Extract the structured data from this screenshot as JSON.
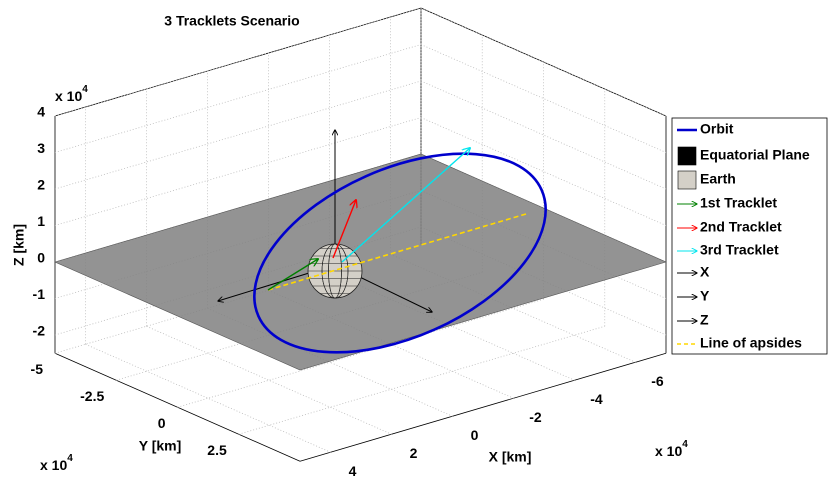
{
  "chart_data": {
    "type": "orbit3d",
    "title": "3 Tracklets Scenario",
    "xlabel": "X [km]",
    "ylabel": "Y [km]",
    "zlabel": "Z [km]",
    "xlim": [
      -7,
      5
    ],
    "ylim": [
      -5,
      5
    ],
    "zlim": [
      -2.5,
      4
    ],
    "xticks": [
      -6,
      -4,
      -2,
      0,
      2,
      4
    ],
    "yticks": [
      -5,
      -2.5,
      0,
      2.5
    ],
    "zticks": [
      -2,
      -1,
      0,
      1,
      2,
      3,
      4
    ],
    "x_exponent": {
      "base": "x 10",
      "power": "4"
    },
    "y_exponent": {
      "base": "x 10",
      "power": "4"
    },
    "z_exponent": {
      "base": "x 10",
      "power": "4"
    },
    "grid": true,
    "legend_position": "right",
    "legend": [
      {
        "name": "Orbit",
        "color": "#0000cc",
        "kind": "line"
      },
      {
        "name": "Equatorial Plane",
        "color": "#000000",
        "kind": "patch"
      },
      {
        "name": "Earth",
        "color": "#d4d0c8",
        "kind": "patch"
      },
      {
        "name": "1st Tracklet",
        "color": "#008000",
        "kind": "arrow"
      },
      {
        "name": "2nd Tracklet",
        "color": "#ff0000",
        "kind": "arrow"
      },
      {
        "name": "3rd Tracklet",
        "color": "#00e5ee",
        "kind": "arrow"
      },
      {
        "name": "X",
        "color": "#000000",
        "kind": "arrow"
      },
      {
        "name": "Y",
        "color": "#000000",
        "kind": "arrow"
      },
      {
        "name": "Z",
        "color": "#000000",
        "kind": "arrow"
      },
      {
        "name": "Line of apsides",
        "color": "#ffd700",
        "kind": "dash"
      }
    ]
  }
}
